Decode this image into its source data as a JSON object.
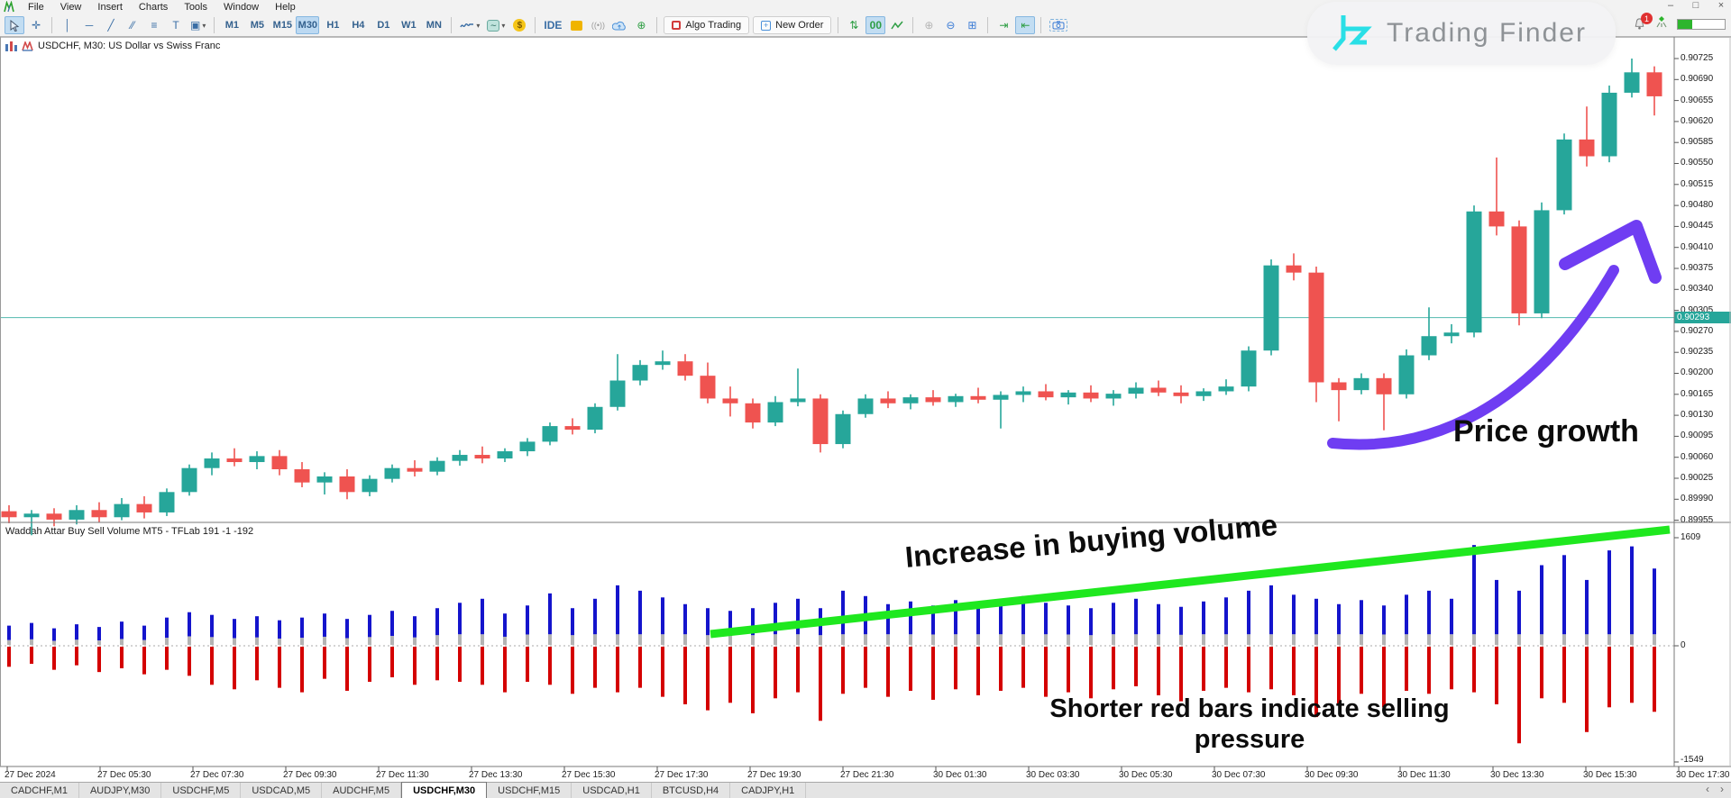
{
  "menu": {
    "items": [
      "File",
      "View",
      "Insert",
      "Charts",
      "Tools",
      "Window",
      "Help"
    ]
  },
  "window_controls": {
    "minimize": "–",
    "maximize": "□",
    "close": "×"
  },
  "toolbar": {
    "timeframes": [
      "M1",
      "M5",
      "M15",
      "M30",
      "H1",
      "H4",
      "D1",
      "W1",
      "MN"
    ],
    "active_timeframe": "M30",
    "ide_label": "IDE",
    "algo_trading_label": "Algo Trading",
    "new_order_label": "New Order",
    "double_zero_label": "00"
  },
  "notifications": {
    "badge_count": "1"
  },
  "watermark": {
    "brand": "Trading Finder"
  },
  "chart": {
    "title": "USDCHF, M30:  US Dollar vs Swiss Franc",
    "current_price_label": "0.90293"
  },
  "indicator": {
    "title": "Waddah Attar Buy Sell Volume MT5 - TFLab 191 -1 -192",
    "axis_top": "1609",
    "axis_zero": "0",
    "axis_bottom": "-1549"
  },
  "annotations": {
    "buying_volume": "Increase in buying volume",
    "selling_line1": "Shorter red bars indicate selling",
    "selling_line2": "pressure",
    "price_growth": "Price growth"
  },
  "tabs": {
    "items": [
      "CADCHF,M1",
      "AUDJPY,M30",
      "USDCHF,M5",
      "USDCAD,M5",
      "AUDCHF,M5",
      "USDCHF,M30",
      "USDCHF,M15",
      "USDCAD,H1",
      "BTCUSD,H4",
      "CADJPY,H1"
    ],
    "active": "USDCHF,M30",
    "scroll_left": "‹",
    "scroll_right": "›"
  },
  "chart_data": {
    "type": "candlestick",
    "symbol": "USDCHF",
    "timeframe": "M30",
    "title": "USDCHF, M30:  US Dollar vs Swiss Franc",
    "current_price": 0.90293,
    "price_axis_labels": [
      "0.90725",
      "0.90690",
      "0.90655",
      "0.90620",
      "0.90585",
      "0.90550",
      "0.90515",
      "0.90480",
      "0.90445",
      "0.90410",
      "0.90375",
      "0.90340",
      "0.90305",
      "0.90270",
      "0.90235",
      "0.90200",
      "0.90165",
      "0.90130",
      "0.90095",
      "0.90060",
      "0.90025",
      "0.89990",
      "0.89955"
    ],
    "time_axis_labels": [
      "27 Dec 2024",
      "27 Dec 05:30",
      "27 Dec 07:30",
      "27 Dec 09:30",
      "27 Dec 11:30",
      "27 Dec 13:30",
      "27 Dec 15:30",
      "27 Dec 17:30",
      "27 Dec 19:30",
      "27 Dec 21:30",
      "30 Dec 01:30",
      "30 Dec 03:30",
      "30 Dec 05:30",
      "30 Dec 07:30",
      "30 Dec 09:30",
      "30 Dec 11:30",
      "30 Dec 13:30",
      "30 Dec 15:30",
      "30 Dec 17:30"
    ],
    "candles": [
      [
        0.8997,
        0.8998,
        0.8995,
        0.8996
      ],
      [
        0.8996,
        0.89972,
        0.8993,
        0.89966
      ],
      [
        0.89966,
        0.89975,
        0.89945,
        0.89956
      ],
      [
        0.89956,
        0.8998,
        0.89948,
        0.89972
      ],
      [
        0.89972,
        0.89985,
        0.89952,
        0.8996
      ],
      [
        0.8996,
        0.89992,
        0.89955,
        0.89982
      ],
      [
        0.89982,
        0.89995,
        0.89958,
        0.89968
      ],
      [
        0.89968,
        0.90008,
        0.89962,
        0.90002
      ],
      [
        0.90002,
        0.90048,
        0.89996,
        0.90042
      ],
      [
        0.90042,
        0.90068,
        0.9003,
        0.90058
      ],
      [
        0.90058,
        0.90075,
        0.90045,
        0.90052
      ],
      [
        0.90052,
        0.9007,
        0.9004,
        0.90062
      ],
      [
        0.90062,
        0.90072,
        0.9003,
        0.9004
      ],
      [
        0.9004,
        0.90052,
        0.9001,
        0.90018
      ],
      [
        0.90018,
        0.90035,
        0.89998,
        0.90028
      ],
      [
        0.90028,
        0.9004,
        0.8999,
        0.90002
      ],
      [
        0.90002,
        0.9003,
        0.89995,
        0.90024
      ],
      [
        0.90024,
        0.90048,
        0.90018,
        0.90042
      ],
      [
        0.90042,
        0.90055,
        0.90028,
        0.90036
      ],
      [
        0.90036,
        0.9006,
        0.9003,
        0.90054
      ],
      [
        0.90054,
        0.90072,
        0.90046,
        0.90064
      ],
      [
        0.90064,
        0.90078,
        0.9005,
        0.90058
      ],
      [
        0.90058,
        0.90075,
        0.90052,
        0.9007
      ],
      [
        0.9007,
        0.90092,
        0.90062,
        0.90086
      ],
      [
        0.90086,
        0.90118,
        0.9008,
        0.90112
      ],
      [
        0.90112,
        0.90125,
        0.90098,
        0.90106
      ],
      [
        0.90106,
        0.9015,
        0.901,
        0.90144
      ],
      [
        0.90144,
        0.90232,
        0.90138,
        0.90188
      ],
      [
        0.90188,
        0.90222,
        0.9018,
        0.90214
      ],
      [
        0.90214,
        0.90238,
        0.90206,
        0.9022
      ],
      [
        0.9022,
        0.90232,
        0.90188,
        0.90196
      ],
      [
        0.90196,
        0.90218,
        0.9015,
        0.90158
      ],
      [
        0.90158,
        0.90178,
        0.90128,
        0.9015
      ],
      [
        0.9015,
        0.90158,
        0.90108,
        0.90118
      ],
      [
        0.90118,
        0.90162,
        0.90112,
        0.90152
      ],
      [
        0.90152,
        0.90208,
        0.90145,
        0.90158
      ],
      [
        0.90158,
        0.90165,
        0.90068,
        0.90082
      ],
      [
        0.90082,
        0.90138,
        0.90075,
        0.90132
      ],
      [
        0.90132,
        0.90165,
        0.90126,
        0.90158
      ],
      [
        0.90158,
        0.9017,
        0.90142,
        0.9015
      ],
      [
        0.9015,
        0.90165,
        0.9014,
        0.9016
      ],
      [
        0.9016,
        0.90172,
        0.90146,
        0.90152
      ],
      [
        0.90152,
        0.90166,
        0.90144,
        0.90162
      ],
      [
        0.90162,
        0.90176,
        0.9015,
        0.90156
      ],
      [
        0.90156,
        0.9017,
        0.90108,
        0.90164
      ],
      [
        0.90164,
        0.90178,
        0.90152,
        0.9017
      ],
      [
        0.9017,
        0.90182,
        0.90155,
        0.9016
      ],
      [
        0.9016,
        0.90172,
        0.90148,
        0.90168
      ],
      [
        0.90168,
        0.9018,
        0.90152,
        0.90158
      ],
      [
        0.90158,
        0.90172,
        0.90146,
        0.90166
      ],
      [
        0.90166,
        0.90185,
        0.90158,
        0.90176
      ],
      [
        0.90176,
        0.90188,
        0.90162,
        0.90168
      ],
      [
        0.90168,
        0.9018,
        0.9015,
        0.90162
      ],
      [
        0.90162,
        0.90175,
        0.90154,
        0.9017
      ],
      [
        0.9017,
        0.9019,
        0.90164,
        0.90178
      ],
      [
        0.90178,
        0.90245,
        0.9017,
        0.90238
      ],
      [
        0.90238,
        0.9039,
        0.9023,
        0.9038
      ],
      [
        0.9038,
        0.904,
        0.90355,
        0.90368
      ],
      [
        0.90368,
        0.90378,
        0.90152,
        0.90185
      ],
      [
        0.90185,
        0.90192,
        0.9012,
        0.90172
      ],
      [
        0.90172,
        0.902,
        0.90165,
        0.90192
      ],
      [
        0.90192,
        0.902,
        0.90105,
        0.90165
      ],
      [
        0.90165,
        0.9024,
        0.90158,
        0.9023
      ],
      [
        0.9023,
        0.9031,
        0.90222,
        0.90262
      ],
      [
        0.90262,
        0.90282,
        0.9025,
        0.90268
      ],
      [
        0.90268,
        0.9048,
        0.9026,
        0.9047
      ],
      [
        0.9047,
        0.9056,
        0.9043,
        0.90445
      ],
      [
        0.90445,
        0.90455,
        0.9028,
        0.903
      ],
      [
        0.903,
        0.90485,
        0.90292,
        0.90472
      ],
      [
        0.90472,
        0.906,
        0.90465,
        0.9059
      ],
      [
        0.9059,
        0.90645,
        0.90545,
        0.90562
      ],
      [
        0.90562,
        0.9068,
        0.90552,
        0.90668
      ],
      [
        0.90668,
        0.90725,
        0.9066,
        0.90702
      ],
      [
        0.90702,
        0.90712,
        0.9063,
        0.90662
      ]
    ],
    "colors": {
      "bull": "#26a69a",
      "bear": "#ef5350",
      "price_line": "#53b9ae",
      "annotation_green": "#1fe81f",
      "annotation_purple": "#6f3df2",
      "indicator_positive": "#1414cc",
      "indicator_negative": "#d40000",
      "indicator_neutral": "#b3b3b3"
    },
    "indicator_histogram": {
      "type": "bar",
      "title": "Waddah Attar Buy Sell Volume MT5 - TFLab 191 -1 -192",
      "ylim": [
        -1549,
        1609
      ],
      "yticks": [
        1609,
        0,
        -1549
      ],
      "bars": [
        [
          300,
          -280
        ],
        [
          340,
          -240
        ],
        [
          260,
          -320
        ],
        [
          320,
          -260
        ],
        [
          280,
          -350
        ],
        [
          360,
          -300
        ],
        [
          300,
          -380
        ],
        [
          420,
          -320
        ],
        [
          500,
          -400
        ],
        [
          460,
          -520
        ],
        [
          400,
          -580
        ],
        [
          440,
          -460
        ],
        [
          380,
          -560
        ],
        [
          420,
          -620
        ],
        [
          480,
          -440
        ],
        [
          400,
          -600
        ],
        [
          460,
          -480
        ],
        [
          520,
          -420
        ],
        [
          440,
          -520
        ],
        [
          560,
          -460
        ],
        [
          640,
          -480
        ],
        [
          700,
          -520
        ],
        [
          480,
          -620
        ],
        [
          600,
          -480
        ],
        [
          780,
          -520
        ],
        [
          560,
          -640
        ],
        [
          700,
          -560
        ],
        [
          900,
          -620
        ],
        [
          820,
          -560
        ],
        [
          720,
          -680
        ],
        [
          620,
          -780
        ],
        [
          560,
          -860
        ],
        [
          520,
          -760
        ],
        [
          560,
          -900
        ],
        [
          640,
          -700
        ],
        [
          700,
          -620
        ],
        [
          560,
          -1000
        ],
        [
          820,
          -640
        ],
        [
          740,
          -560
        ],
        [
          620,
          -680
        ],
        [
          660,
          -600
        ],
        [
          600,
          -720
        ],
        [
          680,
          -580
        ],
        [
          620,
          -660
        ],
        [
          700,
          -600
        ],
        [
          740,
          -560
        ],
        [
          640,
          -680
        ],
        [
          600,
          -620
        ],
        [
          560,
          -700
        ],
        [
          640,
          -580
        ],
        [
          700,
          -540
        ],
        [
          620,
          -660
        ],
        [
          580,
          -740
        ],
        [
          660,
          -600
        ],
        [
          720,
          -560
        ],
        [
          820,
          -620
        ],
        [
          900,
          -580
        ],
        [
          760,
          -660
        ],
        [
          700,
          -950
        ],
        [
          620,
          -780
        ],
        [
          680,
          -640
        ],
        [
          600,
          -820
        ],
        [
          760,
          -600
        ],
        [
          820,
          -640
        ],
        [
          700,
          -580
        ],
        [
          1500,
          -620
        ],
        [
          980,
          -780
        ],
        [
          820,
          -1300
        ],
        [
          1200,
          -700
        ],
        [
          1350,
          -760
        ],
        [
          980,
          -1150
        ],
        [
          1420,
          -820
        ],
        [
          1480,
          -760
        ],
        [
          1150,
          -880
        ]
      ]
    }
  }
}
